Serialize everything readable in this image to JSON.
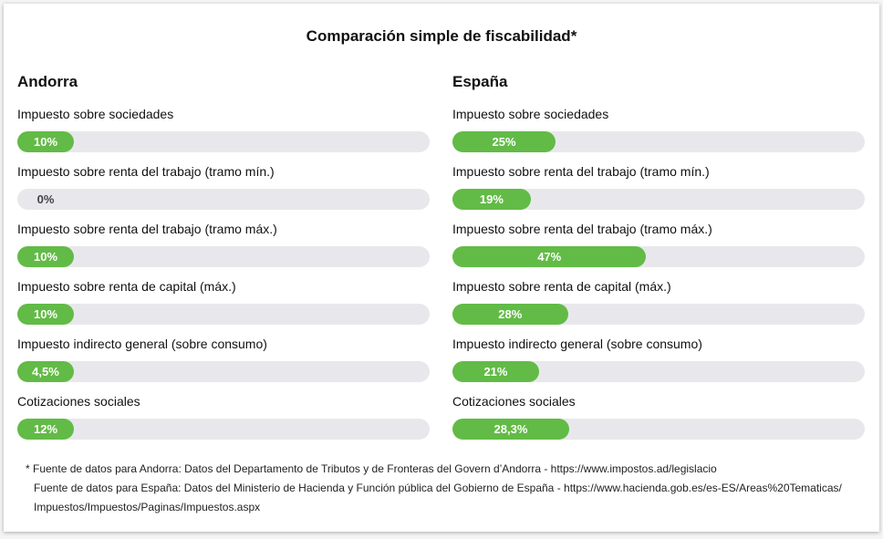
{
  "title": "Comparación simple de fiscabilidad*",
  "colors": {
    "fill": "#62bb46",
    "track": "#e8e8ec"
  },
  "chart_data": {
    "type": "bar",
    "title": "Comparación simple de fiscabilidad*",
    "categories": [
      "Impuesto sobre sociedades",
      "Impuesto sobre renta del trabajo (tramo mín.)",
      "Impuesto sobre renta del trabajo (tramo máx.)",
      "Impuesto sobre renta de capital (máx.)",
      "Impuesto indirecto general (sobre consumo)",
      "Cotizaciones sociales"
    ],
    "ylim": [
      0,
      100
    ],
    "series": [
      {
        "name": "Andorra",
        "values": [
          10,
          0,
          10,
          10,
          4.5,
          12
        ],
        "labels": [
          "10%",
          "0%",
          "10%",
          "10%",
          "4,5%",
          "12%"
        ]
      },
      {
        "name": "España",
        "values": [
          25,
          19,
          47,
          28,
          21,
          28.3
        ],
        "labels": [
          "25%",
          "19%",
          "47%",
          "28%",
          "21%",
          "28,3%"
        ]
      }
    ]
  },
  "footnote": [
    "* Fuente de datos para Andorra: Datos del Departamento de Tributos y de Fronteras del Govern d’Andorra -  https://www.impostos.ad/legislacio",
    "Fuente de datos para España: Datos del Ministerio de Hacienda y Función pública del Gobierno de España - https://www.hacienda.gob.es/es-ES/Areas%20Tematicas/",
    "Impuestos/Impuestos/Paginas/Impuestos.aspx"
  ]
}
